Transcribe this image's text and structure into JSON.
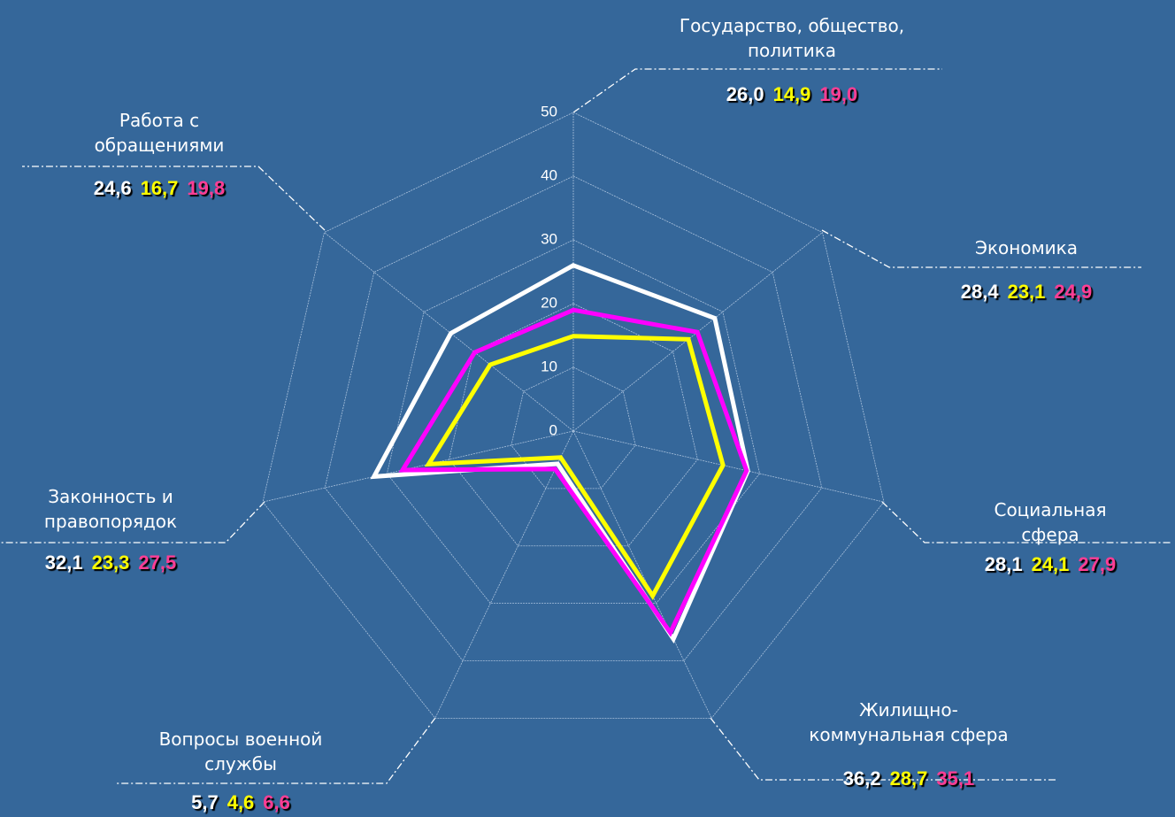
{
  "chart_data": {
    "type": "radar",
    "categories": [
      "Государство, общество,\nполитика",
      "Экономика",
      "Социальная сфера",
      "Жилищно-\nкоммунальная сфера",
      "Вопросы военной\nслужбы",
      "Законность и\nправопорядок",
      "Работа с\nобращениями"
    ],
    "series": [
      {
        "color": "#ffffff",
        "label_color": "#ffffff",
        "values": [
          26.0,
          28.4,
          28.1,
          36.2,
          5.7,
          32.1,
          24.6
        ],
        "value_labels": [
          "26,0",
          "28,4",
          "28,1",
          "36,2",
          "5,7",
          "32,1",
          "24,6"
        ]
      },
      {
        "color": "#ffff00",
        "label_color": "#ffff00",
        "values": [
          14.9,
          23.1,
          24.1,
          28.7,
          4.6,
          23.3,
          16.7
        ],
        "value_labels": [
          "14,9",
          "23,1",
          "24,1",
          "28,7",
          "4,6",
          "23,3",
          "16,7"
        ]
      },
      {
        "color": "#ff00ff",
        "label_color": "#ff3d94",
        "values": [
          19.0,
          24.9,
          27.9,
          35.1,
          6.6,
          27.5,
          19.8
        ],
        "value_labels": [
          "19,0",
          "24,9",
          "27,9",
          "35,1",
          "6,6",
          "27,5",
          "19,8"
        ]
      }
    ],
    "ylim": [
      0,
      50
    ],
    "yticks": [
      0,
      10,
      20,
      30,
      40,
      50
    ],
    "grid": true
  }
}
